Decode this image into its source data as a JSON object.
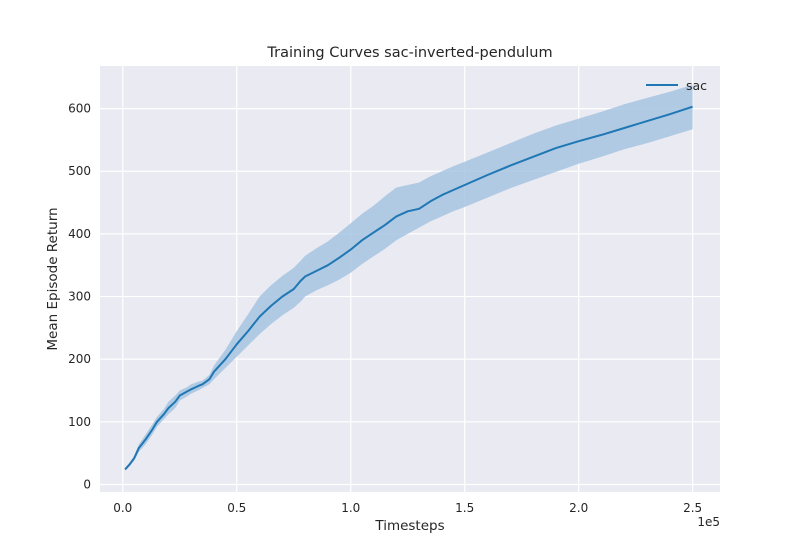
{
  "chart_data": {
    "type": "line",
    "title": "Training Curves sac-inverted-pendulum",
    "xlabel": "Timesteps",
    "ylabel": "Mean Episode Return",
    "x_offset_label": "1e5",
    "x_tick_labels": [
      "0.0",
      "0.5",
      "1.0",
      "1.5",
      "2.0",
      "2.5"
    ],
    "x_tick_values": [
      0,
      50000,
      100000,
      150000,
      200000,
      250000
    ],
    "y_tick_labels": [
      "0",
      "100",
      "200",
      "300",
      "400",
      "500",
      "600"
    ],
    "y_tick_values": [
      0,
      100,
      200,
      300,
      400,
      500,
      600
    ],
    "xlim": [
      -10000,
      262000
    ],
    "ylim": [
      -12,
      668
    ],
    "grid": true,
    "background": "#eaeaf2",
    "legend": {
      "placement": "top-right",
      "entries": [
        "sac"
      ]
    },
    "series": [
      {
        "name": "sac",
        "color": "#1f77b4",
        "band_color": "#a6c4e2",
        "x": [
          1000,
          3000,
          5000,
          7000,
          10000,
          13000,
          15000,
          18000,
          20000,
          23000,
          25000,
          28000,
          30000,
          33000,
          35000,
          38000,
          40000,
          45000,
          50000,
          55000,
          60000,
          65000,
          70000,
          75000,
          78000,
          80000,
          85000,
          90000,
          95000,
          100000,
          105000,
          110000,
          115000,
          120000,
          125000,
          130000,
          135000,
          140000,
          145000,
          150000,
          160000,
          170000,
          180000,
          190000,
          200000,
          210000,
          220000,
          230000,
          240000,
          250000
        ],
        "y": [
          24,
          32,
          42,
          58,
          72,
          88,
          100,
          112,
          122,
          132,
          142,
          148,
          152,
          157,
          160,
          168,
          180,
          200,
          224,
          245,
          268,
          285,
          300,
          312,
          325,
          332,
          341,
          350,
          362,
          375,
          390,
          402,
          414,
          428,
          436,
          440,
          452,
          462,
          470,
          478,
          494,
          509,
          523,
          537,
          548,
          558,
          569,
          580,
          591,
          603
        ],
        "upper": [
          26,
          35,
          46,
          64,
          80,
          96,
          108,
          120,
          132,
          142,
          150,
          155,
          160,
          164,
          166,
          175,
          190,
          215,
          245,
          272,
          300,
          318,
          333,
          346,
          357,
          365,
          377,
          388,
          402,
          417,
          432,
          445,
          460,
          474,
          478,
          482,
          492,
          500,
          508,
          515,
          530,
          545,
          560,
          573,
          584,
          595,
          607,
          617,
          627,
          638
        ],
        "lower": [
          22,
          29,
          38,
          52,
          64,
          80,
          92,
          104,
          112,
          122,
          134,
          140,
          145,
          150,
          154,
          160,
          168,
          186,
          204,
          222,
          240,
          256,
          270,
          282,
          292,
          300,
          310,
          318,
          327,
          338,
          352,
          364,
          376,
          390,
          400,
          410,
          420,
          428,
          436,
          443,
          458,
          473,
          486,
          499,
          512,
          523,
          535,
          545,
          556,
          567
        ]
      }
    ]
  }
}
